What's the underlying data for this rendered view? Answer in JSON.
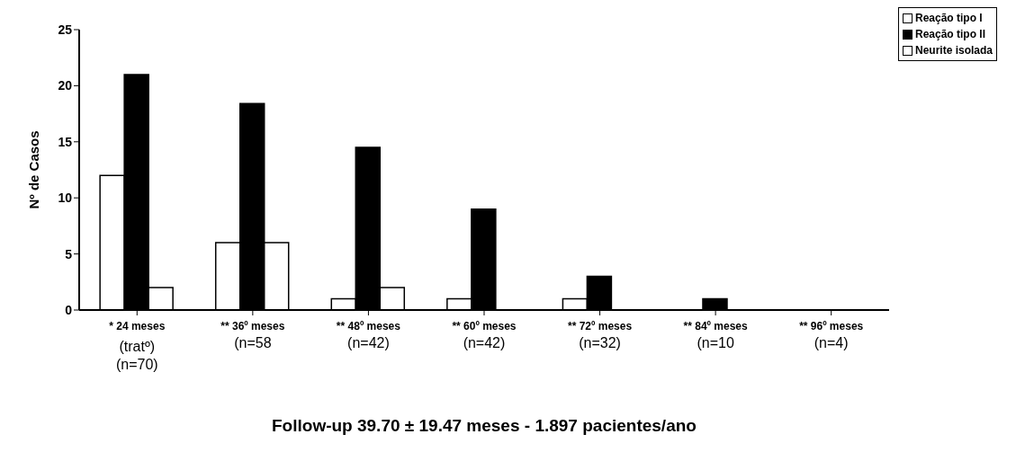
{
  "chart_data": {
    "type": "bar",
    "xlabel": "Follow-up 39.70 ± 19.47 meses - 1.897 pacientes/ano",
    "ylabel": "Nº de Casos",
    "categories": [
      "* 24 meses\n(tratº)\n(n=70)",
      "** 36º meses\n\n(n=58",
      "** 48º meses\n\n(n=42)",
      "** 60º meses\n\n(n=42)",
      "** 72º meses\n\n(n=32)",
      "** 84º meses\n\n(n=10",
      "** 96º meses\n\n(n=4)"
    ],
    "series": [
      {
        "name": "Reação tipo I",
        "color": "#ffffff",
        "values": [
          12,
          6,
          1,
          1,
          1,
          0,
          0
        ]
      },
      {
        "name": "Reação tipo II",
        "color": "#000000",
        "values": [
          21,
          18.4,
          14.5,
          9,
          3,
          1,
          0
        ]
      },
      {
        "name": "Neurite isolada",
        "color": "#ffffff",
        "values": [
          2,
          6,
          2,
          0,
          0,
          0,
          0
        ]
      }
    ],
    "ylim": [
      0,
      25
    ],
    "yticks": [
      0,
      5,
      10,
      15,
      20,
      25
    ],
    "grid": false,
    "legend": "top right"
  }
}
